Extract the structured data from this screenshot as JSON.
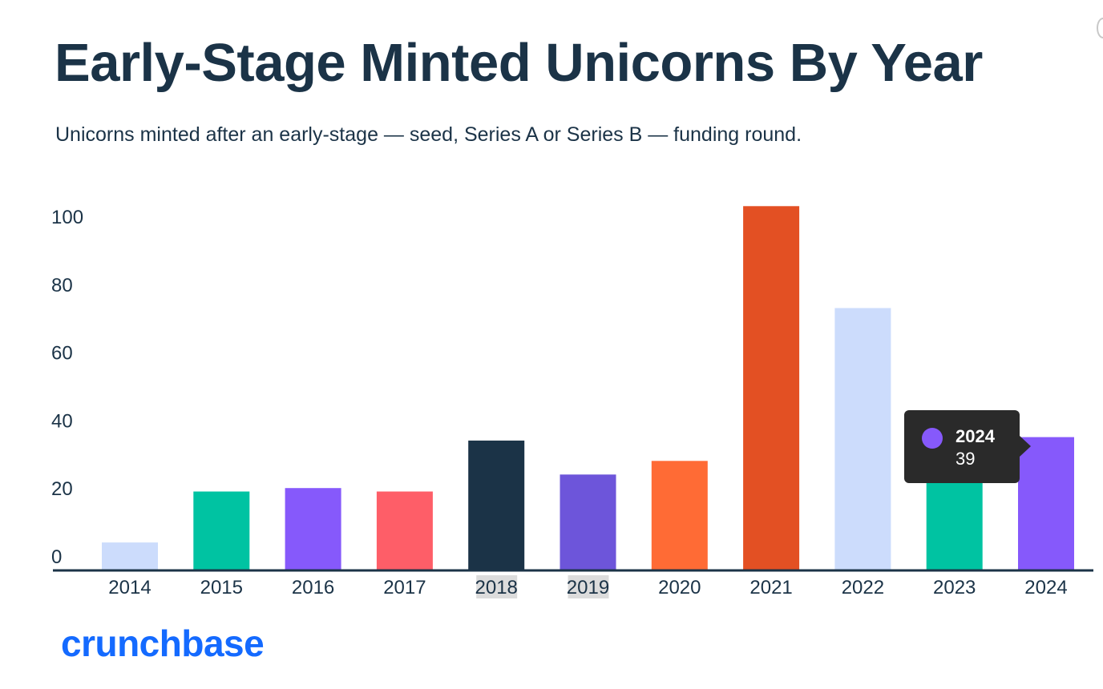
{
  "chart_data": {
    "type": "bar",
    "title": "Early-Stage Minted Unicorns By Year",
    "subtitle": "Unicorns minted after an early-stage — seed, Series A or Series B — funding round.",
    "categories": [
      "2014",
      "2015",
      "2016",
      "2017",
      "2018",
      "2019",
      "2020",
      "2021",
      "2022",
      "2023",
      "2024"
    ],
    "values": [
      8,
      23,
      24,
      23,
      38,
      28,
      32,
      107,
      77,
      39,
      39
    ],
    "colors": [
      "#ccdcfc",
      "#00c3a2",
      "#8659fb",
      "#fe5e68",
      "#1b3347",
      "#6d55da",
      "#ff6b35",
      "#e35023",
      "#ccdcfc",
      "#00c3a2",
      "#8659fb"
    ],
    "yticks": [
      0,
      20,
      40,
      60,
      80,
      100
    ],
    "ylim": [
      0,
      110
    ],
    "highlighted_ticks": [
      "2018",
      "2019"
    ],
    "grid": false,
    "legend": "none"
  },
  "tooltip": {
    "year": "2024",
    "value": "39",
    "dot_color": "#8659fb"
  },
  "logo": {
    "text": "crunchbase",
    "color": "#146aff"
  }
}
